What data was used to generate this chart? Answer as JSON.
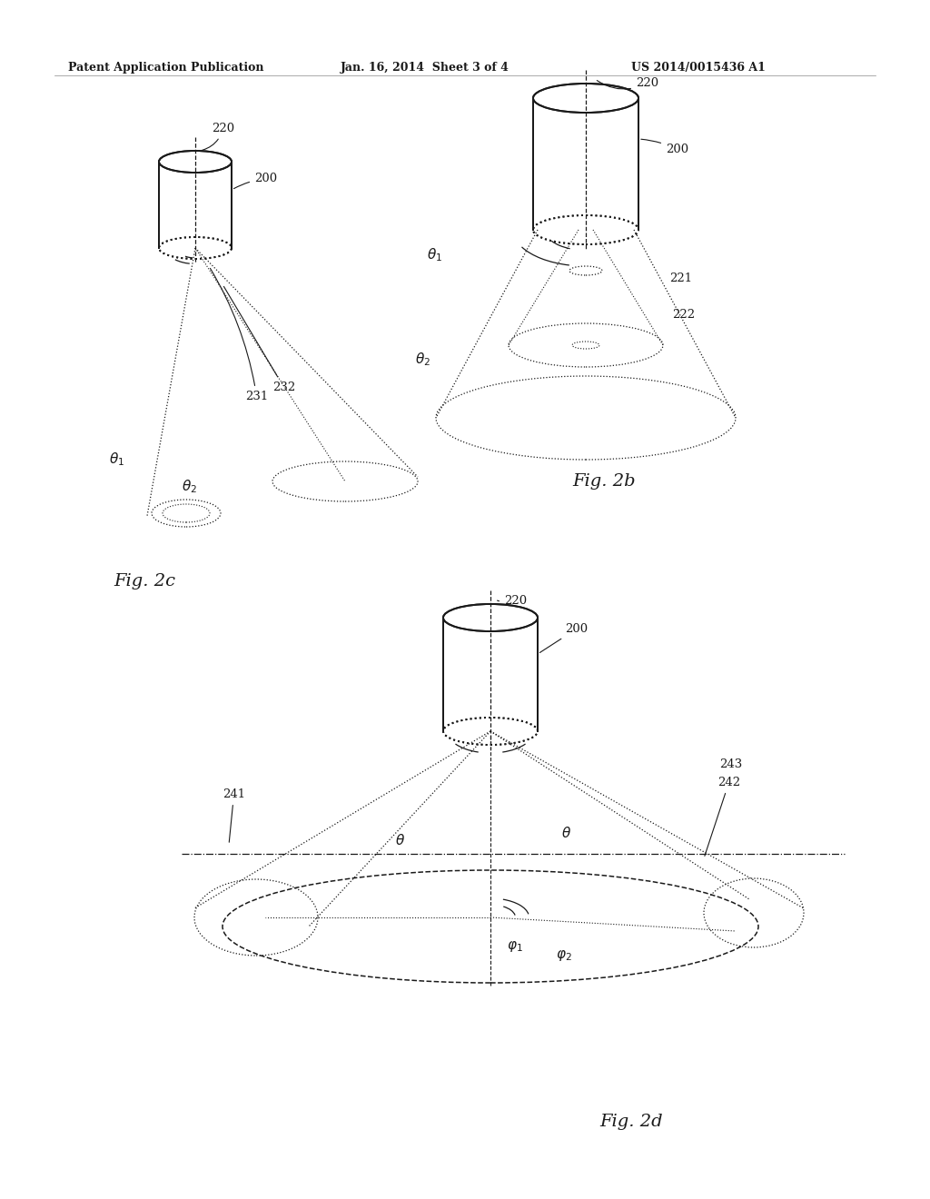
{
  "bg_color": "#ffffff",
  "line_color": "#1a1a1a",
  "header_left": "Patent Application Publication",
  "header_mid": "Jan. 16, 2014  Sheet 3 of 4",
  "header_right": "US 2014/0015436 A1",
  "fig2b_label": "Fig. 2b",
  "fig2c_label": "Fig. 2c",
  "fig2d_label": "Fig. 2d"
}
